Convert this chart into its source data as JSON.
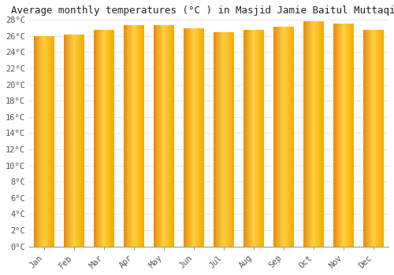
{
  "title": "Average monthly temperatures (°C ) in Masjid Jamie Baitul Muttaqien",
  "months": [
    "Jan",
    "Feb",
    "Mar",
    "Apr",
    "May",
    "Jun",
    "Jul",
    "Aug",
    "Sep",
    "Oct",
    "Nov",
    "Dec"
  ],
  "values": [
    26.0,
    26.2,
    26.8,
    27.3,
    27.3,
    27.0,
    26.5,
    26.8,
    27.2,
    27.8,
    27.5,
    26.8
  ],
  "ylim": [
    0,
    28
  ],
  "yticks": [
    0,
    2,
    4,
    6,
    8,
    10,
    12,
    14,
    16,
    18,
    20,
    22,
    24,
    26,
    28
  ],
  "bar_color_left": "#E8890C",
  "bar_color_mid": "#FFD040",
  "bar_color_right": "#F5A800",
  "background_color": "#ffffff",
  "plot_bg_color": "#ffffff",
  "grid_color": "#dddddd",
  "title_fontsize": 9,
  "tick_fontsize": 7.5,
  "bar_width": 0.7
}
